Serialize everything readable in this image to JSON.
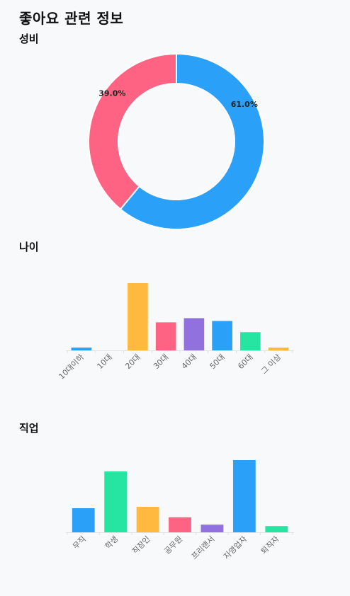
{
  "page": {
    "title": "좋아요 관련 정보"
  },
  "colors": {
    "blue": "#2aa0f8",
    "pink": "#ff6383",
    "yellow": "#ffb93f",
    "purple": "#9171dd",
    "green": "#26e5a2",
    "axis": "#e2e2e2",
    "background": "#f8f9fb"
  },
  "chart_data": [
    {
      "id": "gender",
      "type": "pie",
      "title": "성비",
      "donut": true,
      "labels": [
        "61.0%",
        "39.0%"
      ],
      "values": [
        61.0,
        39.0
      ],
      "colors": [
        "#2aa0f8",
        "#ff6383"
      ],
      "start": "top",
      "direction": "clockwise"
    },
    {
      "id": "age",
      "type": "bar",
      "title": "나이",
      "categories": [
        "10대이하",
        "10대",
        "20대",
        "30대",
        "40대",
        "50대",
        "60대",
        "그 이상"
      ],
      "values": [
        1,
        0,
        24,
        10,
        11.5,
        10.5,
        6.5,
        1
      ],
      "colors": [
        "#2aa0f8",
        "#ff6383",
        "#ffb93f",
        "#ff6383",
        "#9171dd",
        "#2aa0f8",
        "#26e5a2",
        "#ffb93f"
      ],
      "ylim": [
        0,
        24
      ],
      "grid": false,
      "tick_rotation": -45
    },
    {
      "id": "job",
      "type": "bar",
      "title": "직업",
      "categories": [
        "무직",
        "학생",
        "직장인",
        "공무원",
        "프리랜서",
        "자영업자",
        "퇴직자"
      ],
      "values": [
        8.5,
        21.5,
        9,
        5.3,
        2.7,
        25.5,
        2.2
      ],
      "colors": [
        "#2aa0f8",
        "#26e5a2",
        "#ffb93f",
        "#ff6383",
        "#9171dd",
        "#2aa0f8",
        "#26e5a2"
      ],
      "ylim": [
        0,
        25.5
      ],
      "grid": false,
      "tick_rotation": -45
    }
  ]
}
